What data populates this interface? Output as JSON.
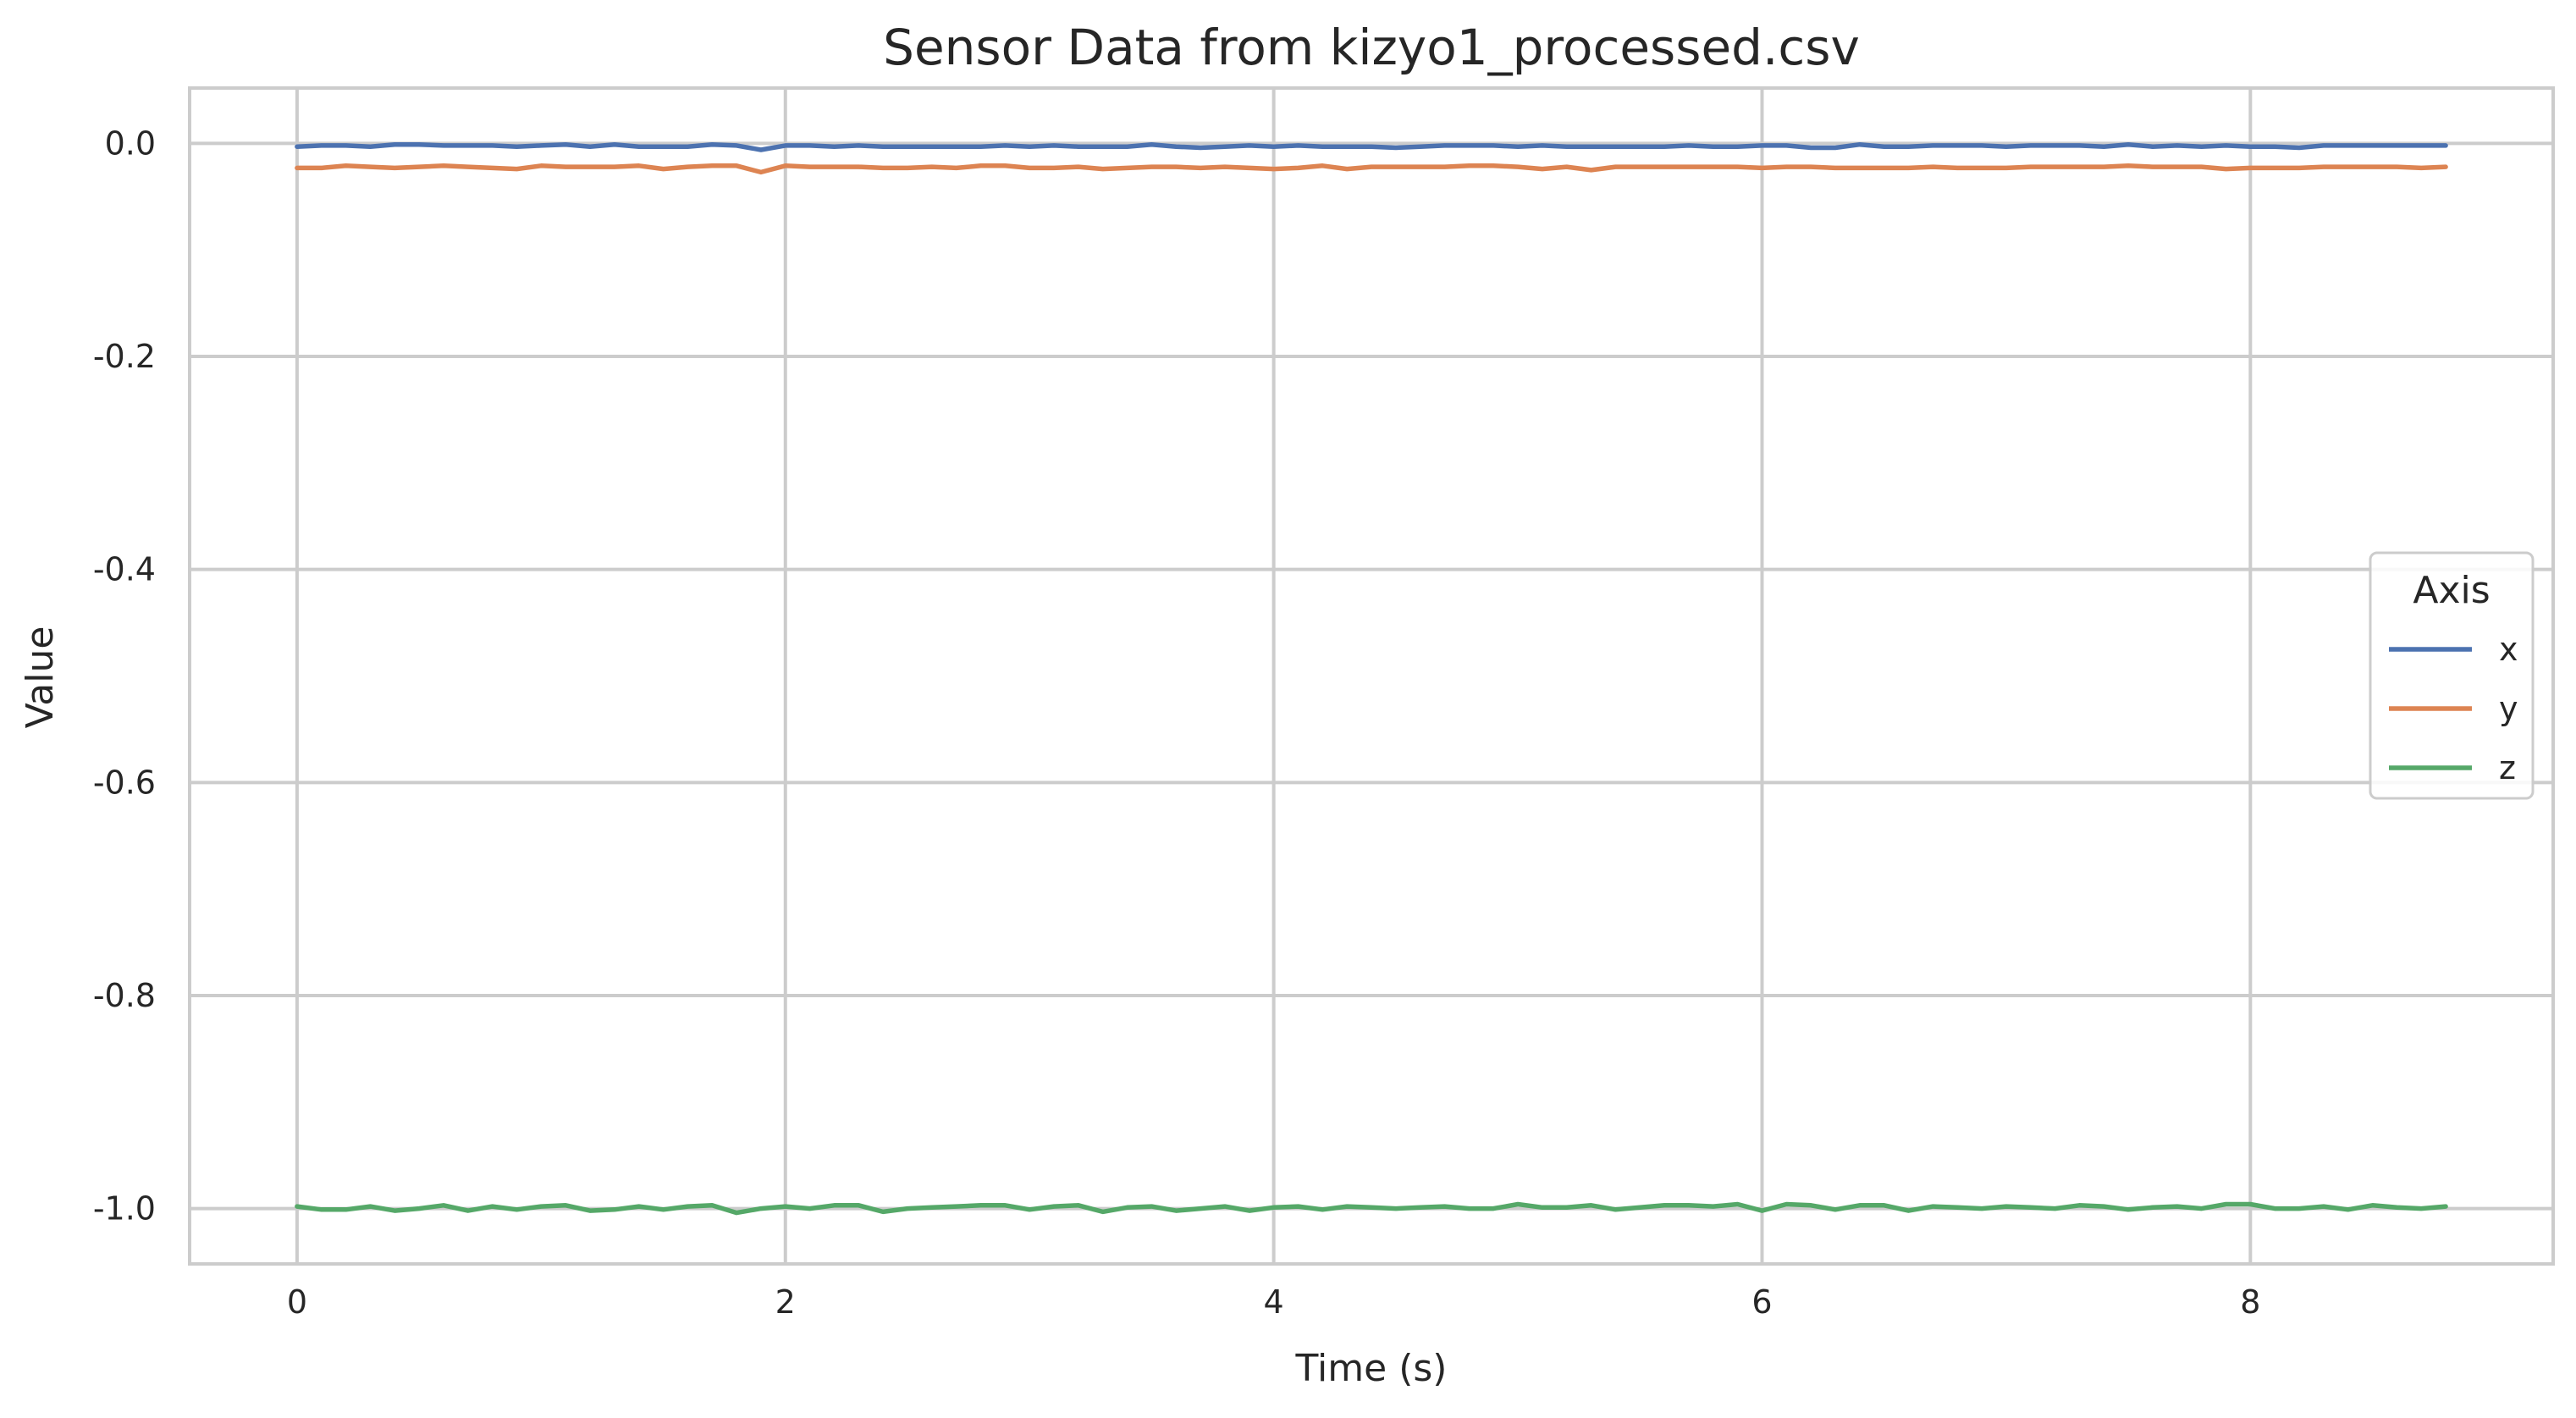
{
  "chart_data": {
    "type": "line",
    "title": "Sensor Data from kizyo1_processed.csv",
    "xlabel": "Time (s)",
    "ylabel": "Value",
    "xlim": [
      -0.44,
      9.24
    ],
    "ylim": [
      -1.052,
      0.052
    ],
    "x_ticks": [
      0,
      2,
      4,
      6,
      8
    ],
    "x_tick_labels": [
      "0",
      "2",
      "4",
      "6",
      "8"
    ],
    "y_ticks": [
      0.0,
      -0.2,
      -0.4,
      -0.6,
      -0.8,
      -1.0
    ],
    "y_tick_labels": [
      "0.0",
      "-0.2",
      "-0.4",
      "-0.6",
      "-0.8",
      "-1.0"
    ],
    "grid": true,
    "legend": {
      "title": "Axis",
      "placement": "center-right"
    },
    "x": [
      0.0,
      0.1,
      0.2,
      0.3,
      0.4,
      0.5,
      0.6,
      0.7,
      0.8,
      0.9,
      1.0,
      1.1,
      1.2,
      1.3,
      1.4,
      1.5,
      1.6,
      1.7,
      1.8,
      1.9,
      2.0,
      2.1,
      2.2,
      2.3,
      2.4,
      2.5,
      2.6,
      2.7,
      2.8,
      2.9,
      3.0,
      3.1,
      3.2,
      3.3,
      3.4,
      3.5,
      3.6,
      3.7,
      3.8,
      3.9,
      4.0,
      4.1,
      4.2,
      4.3,
      4.4,
      4.5,
      4.6,
      4.7,
      4.8,
      4.9,
      5.0,
      5.1,
      5.2,
      5.3,
      5.4,
      5.5,
      5.6,
      5.7,
      5.8,
      5.9,
      6.0,
      6.1,
      6.2,
      6.3,
      6.4,
      6.5,
      6.6,
      6.7,
      6.8,
      6.9,
      7.0,
      7.1,
      7.2,
      7.3,
      7.4,
      7.5,
      7.6,
      7.7,
      7.8,
      7.9,
      8.0,
      8.1,
      8.2,
      8.3,
      8.4,
      8.5,
      8.6,
      8.7,
      8.8
    ],
    "series": [
      {
        "name": "x",
        "color": "#4c72b0",
        "values": [
          -0.003,
          -0.002,
          -0.002,
          -0.003,
          -0.001,
          -0.001,
          -0.002,
          -0.002,
          -0.002,
          -0.003,
          -0.002,
          -0.001,
          -0.003,
          -0.001,
          -0.003,
          -0.003,
          -0.003,
          -0.001,
          -0.002,
          -0.006,
          -0.002,
          -0.002,
          -0.003,
          -0.002,
          -0.003,
          -0.003,
          -0.003,
          -0.003,
          -0.003,
          -0.002,
          -0.003,
          -0.002,
          -0.003,
          -0.003,
          -0.003,
          -0.001,
          -0.003,
          -0.004,
          -0.003,
          -0.002,
          -0.003,
          -0.002,
          -0.003,
          -0.003,
          -0.003,
          -0.004,
          -0.003,
          -0.002,
          -0.002,
          -0.002,
          -0.003,
          -0.002,
          -0.003,
          -0.003,
          -0.003,
          -0.003,
          -0.003,
          -0.002,
          -0.003,
          -0.003,
          -0.002,
          -0.002,
          -0.004,
          -0.004,
          -0.001,
          -0.003,
          -0.003,
          -0.002,
          -0.002,
          -0.002,
          -0.003,
          -0.002,
          -0.002,
          -0.002,
          -0.003,
          -0.001,
          -0.003,
          -0.002,
          -0.003,
          -0.002,
          -0.003,
          -0.003,
          -0.004,
          -0.002,
          -0.002,
          -0.002,
          -0.002,
          -0.002,
          -0.002
        ]
      },
      {
        "name": "y",
        "color": "#dd8452",
        "values": [
          -0.023,
          -0.023,
          -0.021,
          -0.022,
          -0.023,
          -0.022,
          -0.021,
          -0.022,
          -0.023,
          -0.024,
          -0.021,
          -0.022,
          -0.022,
          -0.022,
          -0.021,
          -0.024,
          -0.022,
          -0.021,
          -0.021,
          -0.027,
          -0.021,
          -0.022,
          -0.022,
          -0.022,
          -0.023,
          -0.023,
          -0.022,
          -0.023,
          -0.021,
          -0.021,
          -0.023,
          -0.023,
          -0.022,
          -0.024,
          -0.023,
          -0.022,
          -0.022,
          -0.023,
          -0.022,
          -0.023,
          -0.024,
          -0.023,
          -0.021,
          -0.024,
          -0.022,
          -0.022,
          -0.022,
          -0.022,
          -0.021,
          -0.021,
          -0.022,
          -0.024,
          -0.022,
          -0.025,
          -0.022,
          -0.022,
          -0.022,
          -0.022,
          -0.022,
          -0.022,
          -0.023,
          -0.022,
          -0.022,
          -0.023,
          -0.023,
          -0.023,
          -0.023,
          -0.022,
          -0.023,
          -0.023,
          -0.023,
          -0.022,
          -0.022,
          -0.022,
          -0.022,
          -0.021,
          -0.022,
          -0.022,
          -0.022,
          -0.024,
          -0.023,
          -0.023,
          -0.023,
          -0.022,
          -0.022,
          -0.022,
          -0.022,
          -0.023,
          -0.022
        ]
      },
      {
        "name": "z",
        "color": "#55a868",
        "values": [
          -0.998,
          -1.001,
          -1.001,
          -0.998,
          -1.002,
          -1.0,
          -0.997,
          -1.002,
          -0.998,
          -1.001,
          -0.998,
          -0.997,
          -1.002,
          -1.001,
          -0.998,
          -1.001,
          -0.998,
          -0.997,
          -1.004,
          -1.0,
          -0.998,
          -1.0,
          -0.997,
          -0.997,
          -1.003,
          -1.0,
          -0.999,
          -0.998,
          -0.997,
          -0.997,
          -1.001,
          -0.998,
          -0.997,
          -1.003,
          -0.999,
          -0.998,
          -1.002,
          -1.0,
          -0.998,
          -1.002,
          -0.999,
          -0.998,
          -1.001,
          -0.998,
          -0.999,
          -1.0,
          -0.999,
          -0.998,
          -1.0,
          -1.0,
          -0.996,
          -0.999,
          -0.999,
          -0.997,
          -1.001,
          -0.999,
          -0.997,
          -0.997,
          -0.998,
          -0.996,
          -1.002,
          -0.996,
          -0.997,
          -1.001,
          -0.997,
          -0.997,
          -1.002,
          -0.998,
          -0.999,
          -1.0,
          -0.998,
          -0.999,
          -1.0,
          -0.997,
          -0.998,
          -1.001,
          -0.999,
          -0.998,
          -1.0,
          -0.996,
          -0.996,
          -1.0,
          -1.0,
          -0.998,
          -1.001,
          -0.997,
          -0.999,
          -1.0,
          -0.998
        ]
      }
    ]
  },
  "colors": {
    "grid": "#cccccc",
    "frame": "#cccccc",
    "text": "#262626",
    "background": "#ffffff"
  }
}
